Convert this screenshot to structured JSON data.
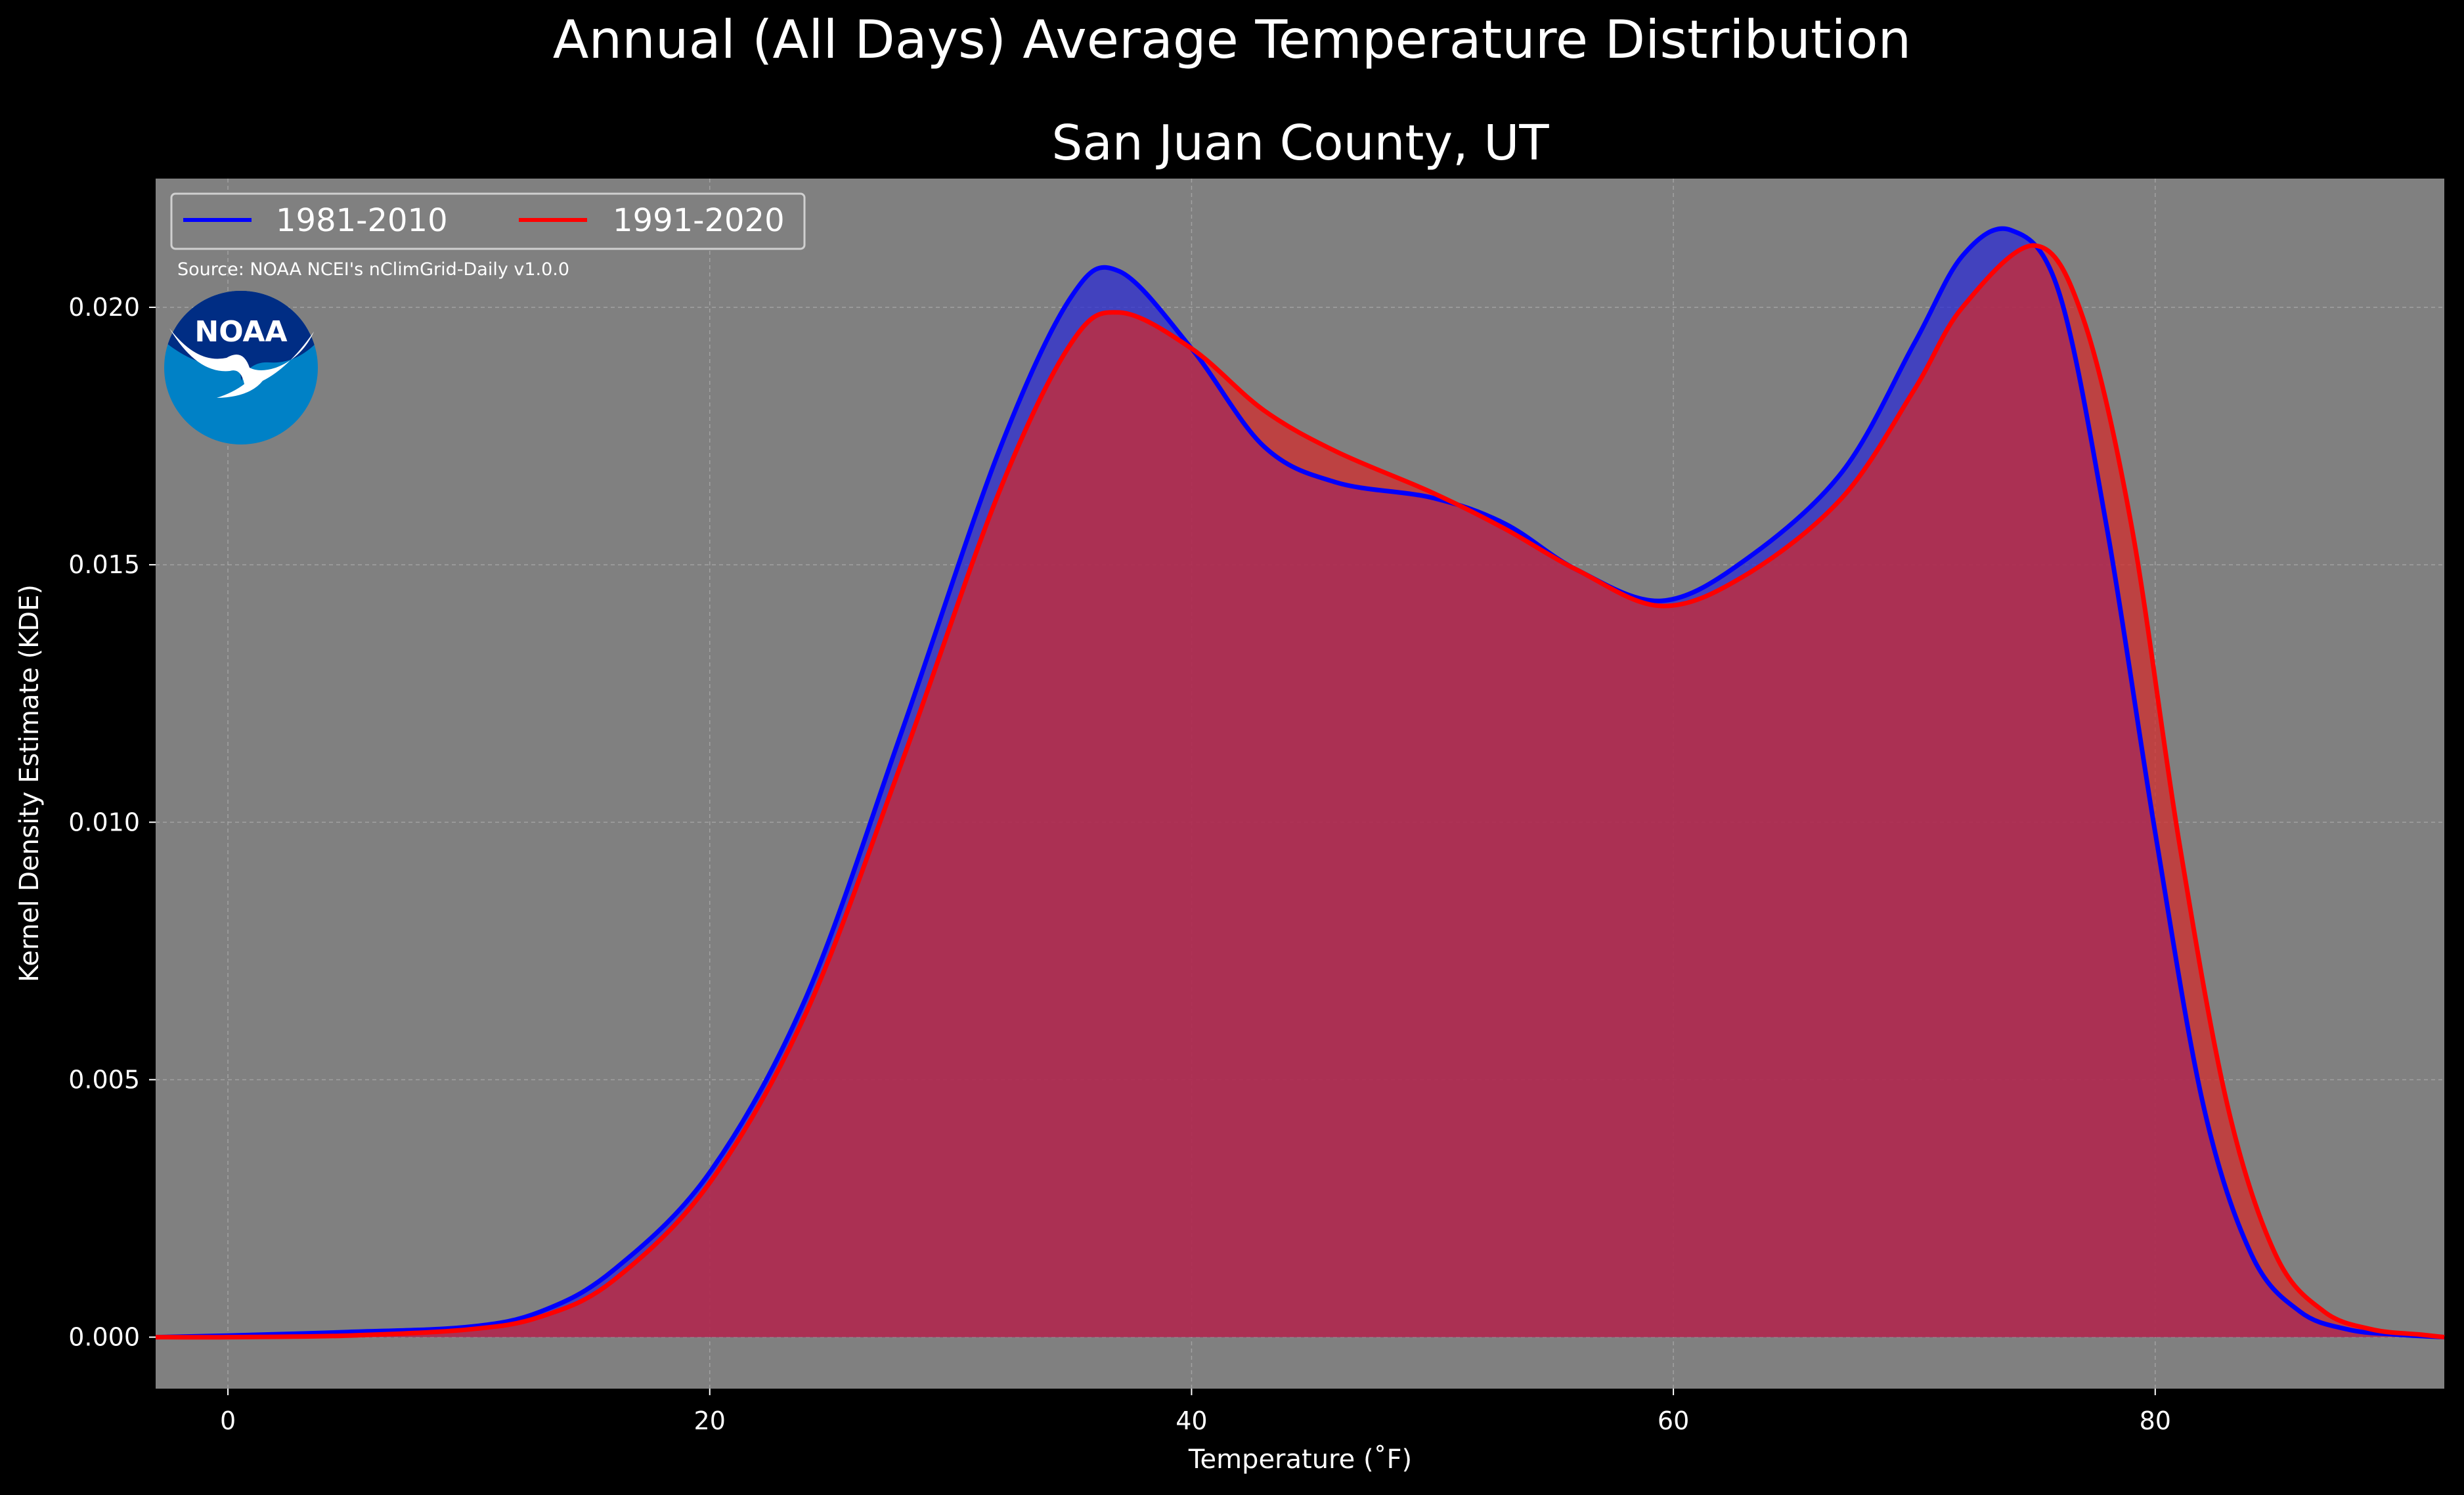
{
  "chart_data": {
    "type": "area",
    "title": "Annual (All Days) Average Temperature Distribution",
    "subtitle": "San Juan County, UT",
    "xlabel": "Temperature (˚F)",
    "ylabel": "Kernel Density Estimate (KDE)",
    "xlim": [
      -3,
      92
    ],
    "ylim": [
      -0.001,
      0.0225
    ],
    "xticks": [
      0,
      20,
      40,
      60,
      80
    ],
    "xtick_labels": [
      "0",
      "20",
      "40",
      "60",
      "80"
    ],
    "yticks": [
      0.0,
      0.005,
      0.01,
      0.015,
      0.02
    ],
    "ytick_labels": [
      "0.000",
      "0.005",
      "0.010",
      "0.015",
      "0.020"
    ],
    "grid": true,
    "legend_position": "top-left",
    "source_note": "Source: NOAA NCEI's nClimGrid-Daily v1.0.0",
    "logo_text": "NOAA",
    "background_color": "#808080",
    "figure_color": "#000000",
    "series": [
      {
        "name": "1981-2010",
        "color": "#0000ff",
        "fill": "#2a2ad6",
        "x": [
          -3,
          0,
          5,
          10,
          13,
          16,
          20,
          24,
          28,
          32,
          35,
          37,
          40,
          43,
          46,
          50,
          53,
          56,
          59.5,
          63,
          67,
          70,
          72,
          74,
          76,
          78,
          80,
          82,
          84,
          86,
          88,
          90,
          92
        ],
        "y": [
          0.0,
          3e-05,
          0.0001,
          0.0002,
          0.0005,
          0.0013,
          0.0032,
          0.0066,
          0.0118,
          0.0172,
          0.0202,
          0.0207,
          0.0192,
          0.0173,
          0.0166,
          0.0163,
          0.0158,
          0.0149,
          0.0143,
          0.0151,
          0.0168,
          0.0193,
          0.021,
          0.0215,
          0.0203,
          0.0157,
          0.0098,
          0.0045,
          0.0016,
          0.0005,
          0.00015,
          5e-05,
          0.0
        ]
      },
      {
        "name": "1991-2020",
        "color": "#ff0000",
        "fill": "#d42a2a",
        "x": [
          -3,
          0,
          5,
          10,
          13,
          16,
          20,
          24,
          28,
          32,
          35,
          37,
          40,
          43,
          46,
          50,
          53,
          56,
          59.5,
          63,
          67,
          70,
          72,
          75,
          77,
          79,
          81,
          83,
          85,
          87,
          89,
          91,
          92
        ],
        "y": [
          0.0,
          0.0,
          3e-05,
          0.00015,
          0.0004,
          0.0011,
          0.003,
          0.0063,
          0.0112,
          0.0164,
          0.0193,
          0.0199,
          0.0192,
          0.018,
          0.0172,
          0.0164,
          0.0157,
          0.0149,
          0.0142,
          0.0148,
          0.0163,
          0.0184,
          0.02,
          0.0212,
          0.0198,
          0.0158,
          0.0096,
          0.0045,
          0.0016,
          0.0005,
          0.00015,
          5e-05,
          0.0
        ]
      }
    ]
  }
}
